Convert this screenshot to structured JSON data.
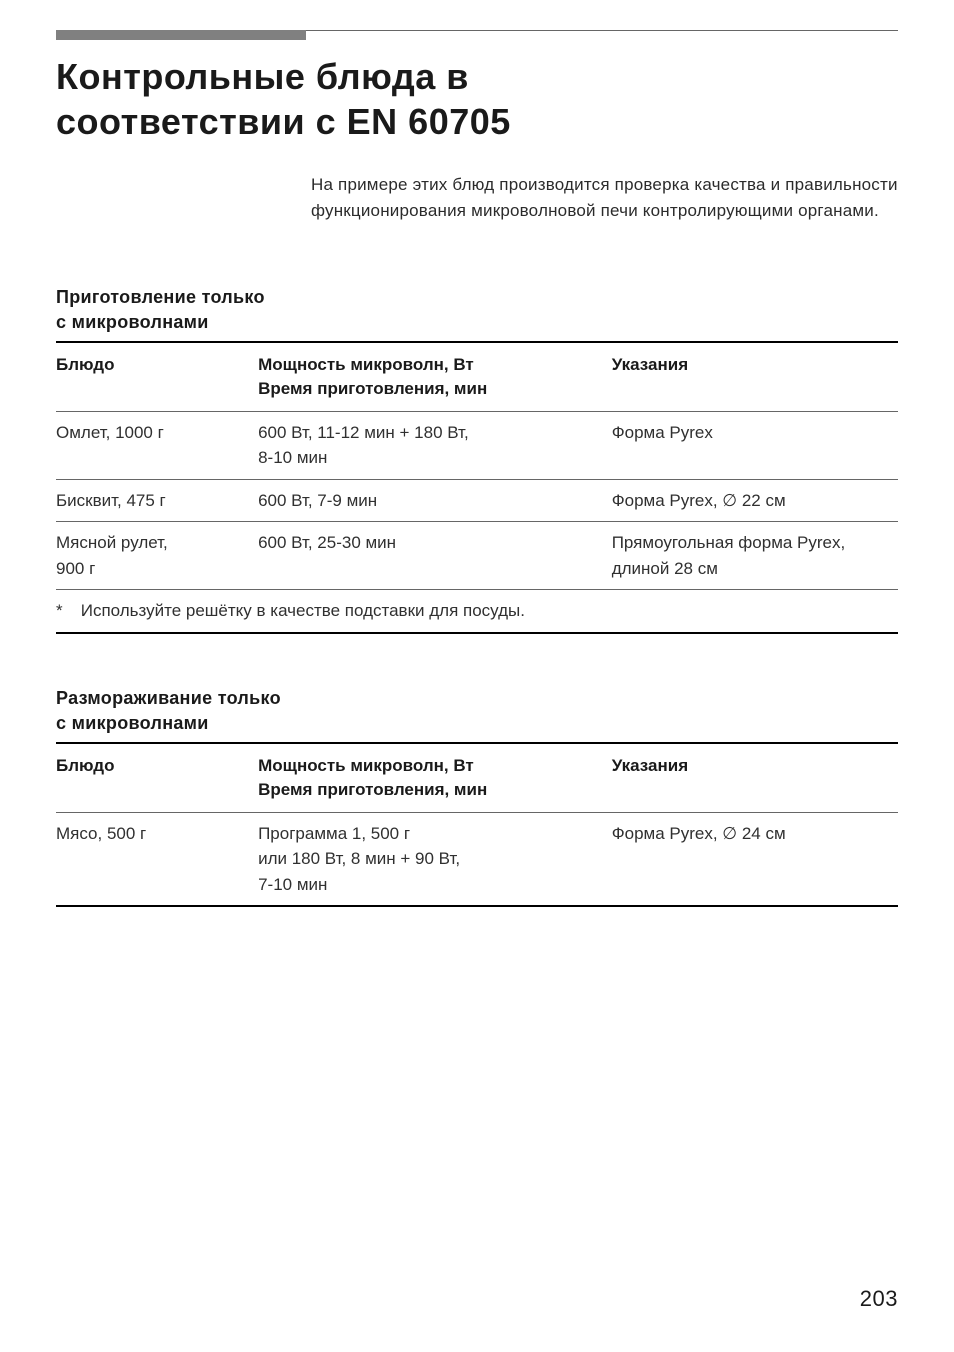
{
  "title_line1": "Контрольные блюда в",
  "title_line2": "соответствии с EN 60705",
  "intro": "На примере этих блюд производится проверка качества и правильности функционирования микроволновой печи контролирующими органами.",
  "page_number": "203",
  "section1": {
    "heading_line1": "Приготовление только",
    "heading_line2": "с микроволнами",
    "col1_label": "Блюдо",
    "col2_label_line1": "Мощность микроволн, Вт",
    "col2_label_line2": "Время приготовления, мин",
    "col3_label": "Указания",
    "rows": [
      {
        "dish": "Омлет, 1000 г",
        "power_line1": "600 Вт, 11-12 мин + 180 Вт,",
        "power_line2": "8-10 мин",
        "notes": "Форма Pyrex"
      },
      {
        "dish": "Бисквит, 475 г",
        "power_line1": "600 Вт, 7-9 мин",
        "power_line2": "",
        "notes": "Форма Pyrex, ∅ 22 см"
      },
      {
        "dish_line1": "Мясной рулет,",
        "dish_line2": "900 г",
        "power_line1": "600 Вт, 25-30 мин",
        "power_line2": "",
        "notes_line1": "Прямоугольная форма Pyrex,",
        "notes_line2": "длиной 28 см"
      }
    ],
    "footnote_star": "*",
    "footnote_text": "Используйте решётку в качестве подставки для посуды."
  },
  "section2": {
    "heading_line1": "Размораживание только",
    "heading_line2": "с микроволнами",
    "col1_label": "Блюдо",
    "col2_label_line1": "Мощность микроволн, Вт",
    "col2_label_line2": "Время приготовления, мин",
    "col3_label": "Указания",
    "rows": [
      {
        "dish": "Мясо, 500 г",
        "power_line1": "Программа 1, 500 г",
        "power_line2": "или 180 Вт, 8 мин + 90 Вт,",
        "power_line3": "7-10 мин",
        "notes": "Форма Pyrex, ∅ 24 см"
      }
    ]
  }
}
